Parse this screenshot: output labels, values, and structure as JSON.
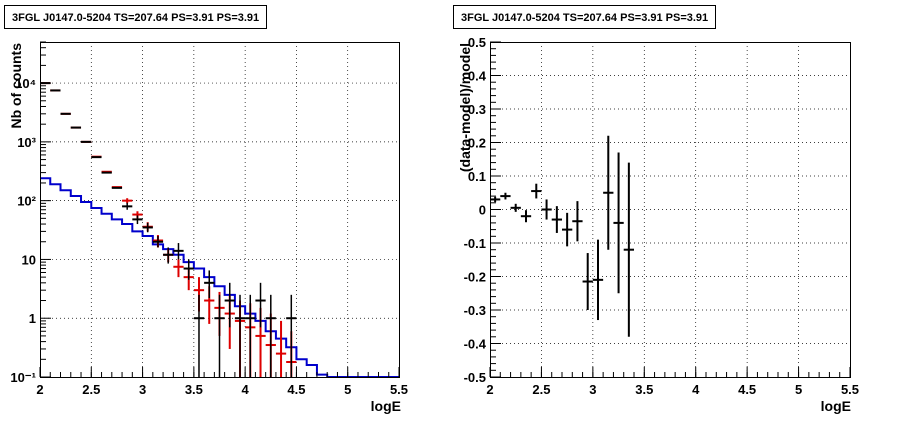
{
  "chart_data": [
    {
      "type": "step-histogram",
      "title": "3FGL J0147.0-5204 TS=207.64 PS=3.91 PS=3.91",
      "xlabel": "logE",
      "ylabel": "Nb of counts",
      "xlim": [
        2,
        5.5
      ],
      "ylim": [
        0.1,
        50000
      ],
      "yscale": "log",
      "grid": true,
      "xticks": [
        "2",
        "2.5",
        "3",
        "3.5",
        "4",
        "4.5",
        "5",
        "5.5"
      ],
      "yticks": [
        {
          "value": 0.1,
          "label": "10⁻¹"
        },
        {
          "value": 1,
          "label": "1"
        },
        {
          "value": 10,
          "label": "10"
        },
        {
          "value": 100,
          "label": "10²"
        },
        {
          "value": 1000,
          "label": "10³"
        },
        {
          "value": 10000,
          "label": "10⁴"
        }
      ],
      "colors": {
        "data": "#000000",
        "model": "#dd0000",
        "background": "#0000cc"
      },
      "bin_edges": [
        2.0,
        2.1,
        2.2,
        2.3,
        2.4,
        2.5,
        2.6,
        2.7,
        2.8,
        2.9,
        3.0,
        3.1,
        3.2,
        3.3,
        3.4,
        3.5,
        3.6,
        3.7,
        3.8,
        3.9,
        4.0,
        4.1,
        4.2,
        4.3,
        4.4,
        4.5,
        4.6,
        4.7,
        4.8,
        4.9,
        5.0,
        5.1,
        5.2,
        5.3,
        5.4,
        5.5
      ],
      "background_model": [
        240,
        190,
        150,
        120,
        95,
        75,
        60,
        48,
        40,
        30,
        25,
        18,
        15,
        12,
        9,
        7,
        5,
        3.5,
        2.5,
        1.6,
        1.2,
        0.9,
        0.6,
        0.45,
        0.32,
        0.2,
        0.16,
        0.11,
        0.1,
        0.1,
        0.1,
        0.1,
        0.1,
        0.1,
        0.1
      ],
      "data_points": [
        {
          "x": 2.05,
          "y": 10000
        },
        {
          "x": 2.15,
          "y": 7500
        },
        {
          "x": 2.25,
          "y": 3000
        },
        {
          "x": 2.35,
          "y": 1750
        },
        {
          "x": 2.45,
          "y": 1000
        },
        {
          "x": 2.55,
          "y": 550
        },
        {
          "x": 2.65,
          "y": 300
        },
        {
          "x": 2.75,
          "y": 165
        },
        {
          "x": 2.85,
          "y": 80,
          "lo": 70,
          "hi": 92
        },
        {
          "x": 2.95,
          "y": 48,
          "lo": 40,
          "hi": 56
        },
        {
          "x": 3.05,
          "y": 35,
          "lo": 29,
          "hi": 42
        },
        {
          "x": 3.15,
          "y": 20,
          "lo": 16,
          "hi": 25
        },
        {
          "x": 3.25,
          "y": 12,
          "lo": 8.5,
          "hi": 16
        },
        {
          "x": 3.35,
          "y": 14,
          "lo": 10,
          "hi": 19
        },
        {
          "x": 3.45,
          "y": 7,
          "lo": 4.5,
          "hi": 10
        },
        {
          "x": 3.55,
          "y": 1,
          "lo": 0.1,
          "hi": 2.5
        },
        {
          "x": 3.65,
          "y": 4,
          "lo": 2.2,
          "hi": 6.5
        },
        {
          "x": 3.75,
          "y": 1,
          "lo": 0.1,
          "hi": 2.5
        },
        {
          "x": 3.85,
          "y": 2,
          "lo": 0.7,
          "hi": 4
        },
        {
          "x": 3.95,
          "y": 1,
          "lo": 0.1,
          "hi": 2.5
        },
        {
          "x": 4.05,
          "y": 1,
          "lo": 0.1,
          "hi": 2.5
        },
        {
          "x": 4.15,
          "y": 2,
          "lo": 0.7,
          "hi": 4
        },
        {
          "x": 4.25,
          "y": 1,
          "lo": 0.1,
          "hi": 2.5
        },
        {
          "x": 4.45,
          "y": 1,
          "lo": 0.1,
          "hi": 2.5
        }
      ],
      "model_points": [
        {
          "x": 2.05,
          "y": 10000
        },
        {
          "x": 2.15,
          "y": 7500
        },
        {
          "x": 2.25,
          "y": 3000
        },
        {
          "x": 2.35,
          "y": 1750
        },
        {
          "x": 2.45,
          "y": 1000
        },
        {
          "x": 2.55,
          "y": 560
        },
        {
          "x": 2.65,
          "y": 310
        },
        {
          "x": 2.75,
          "y": 170
        },
        {
          "x": 2.85,
          "y": 100,
          "lo": 90,
          "hi": 110
        },
        {
          "x": 2.95,
          "y": 58,
          "lo": 50,
          "hi": 66
        },
        {
          "x": 3.05,
          "y": 36,
          "lo": 30,
          "hi": 43
        },
        {
          "x": 3.15,
          "y": 21,
          "lo": 16,
          "hi": 26
        },
        {
          "x": 3.25,
          "y": 12,
          "lo": 9,
          "hi": 15
        },
        {
          "x": 3.35,
          "y": 7.5,
          "lo": 5,
          "hi": 10
        },
        {
          "x": 3.45,
          "y": 5,
          "lo": 3,
          "hi": 7
        },
        {
          "x": 3.55,
          "y": 3,
          "lo": 1.3,
          "hi": 5
        },
        {
          "x": 3.65,
          "y": 2,
          "lo": 0.8,
          "hi": 3.5
        },
        {
          "x": 3.75,
          "y": 1.5,
          "lo": 0.5,
          "hi": 2.8
        },
        {
          "x": 3.85,
          "y": 1.2,
          "lo": 0.3,
          "hi": 2.4
        },
        {
          "x": 3.95,
          "y": 0.9,
          "lo": 0.1,
          "hi": 2
        },
        {
          "x": 4.05,
          "y": 0.7,
          "lo": 0.1,
          "hi": 1.8
        },
        {
          "x": 4.15,
          "y": 0.5,
          "lo": 0.1,
          "hi": 1.5
        },
        {
          "x": 4.25,
          "y": 0.35,
          "lo": 0.1,
          "hi": 1.2
        },
        {
          "x": 4.35,
          "y": 0.25,
          "lo": 0.1,
          "hi": 0.9
        },
        {
          "x": 4.45,
          "y": 0.18,
          "lo": 0.1,
          "hi": 0.6
        }
      ]
    },
    {
      "type": "scatter-errorbars",
      "title": "3FGL J0147.0-5204 TS=207.64 PS=3.91 PS=3.91",
      "xlabel": "logE",
      "ylabel": "(data-model)/model",
      "xlim": [
        2,
        5.5
      ],
      "ylim": [
        -0.5,
        0.5
      ],
      "grid": true,
      "xticks": [
        "2",
        "2.5",
        "3",
        "3.5",
        "4",
        "4.5",
        "5",
        "5.5"
      ],
      "yticks": [
        "-0.5",
        "-0.4",
        "-0.3",
        "-0.2",
        "-0.1",
        "0",
        "0.1",
        "0.2",
        "0.3",
        "0.4",
        "0.5"
      ],
      "colors": {
        "points": "#000000"
      },
      "points": [
        {
          "x": 2.05,
          "y": 0.03,
          "err": 0.008
        },
        {
          "x": 2.15,
          "y": 0.04,
          "err": 0.01
        },
        {
          "x": 2.25,
          "y": 0.005,
          "err": 0.012
        },
        {
          "x": 2.35,
          "y": -0.02,
          "err": 0.018
        },
        {
          "x": 2.45,
          "y": 0.055,
          "err": 0.022
        },
        {
          "x": 2.55,
          "y": 0.0,
          "err": 0.03
        },
        {
          "x": 2.65,
          "y": -0.03,
          "err": 0.04
        },
        {
          "x": 2.75,
          "y": -0.06,
          "err": 0.05
        },
        {
          "x": 2.85,
          "y": -0.035,
          "err": 0.06
        },
        {
          "x": 2.95,
          "y": -0.215,
          "err": 0.085
        },
        {
          "x": 3.05,
          "y": -0.21,
          "err": 0.12
        },
        {
          "x": 3.15,
          "y": 0.05,
          "err": 0.17
        },
        {
          "x": 3.25,
          "y": -0.04,
          "err": 0.21
        },
        {
          "x": 3.35,
          "y": -0.12,
          "err": 0.26
        }
      ]
    }
  ]
}
